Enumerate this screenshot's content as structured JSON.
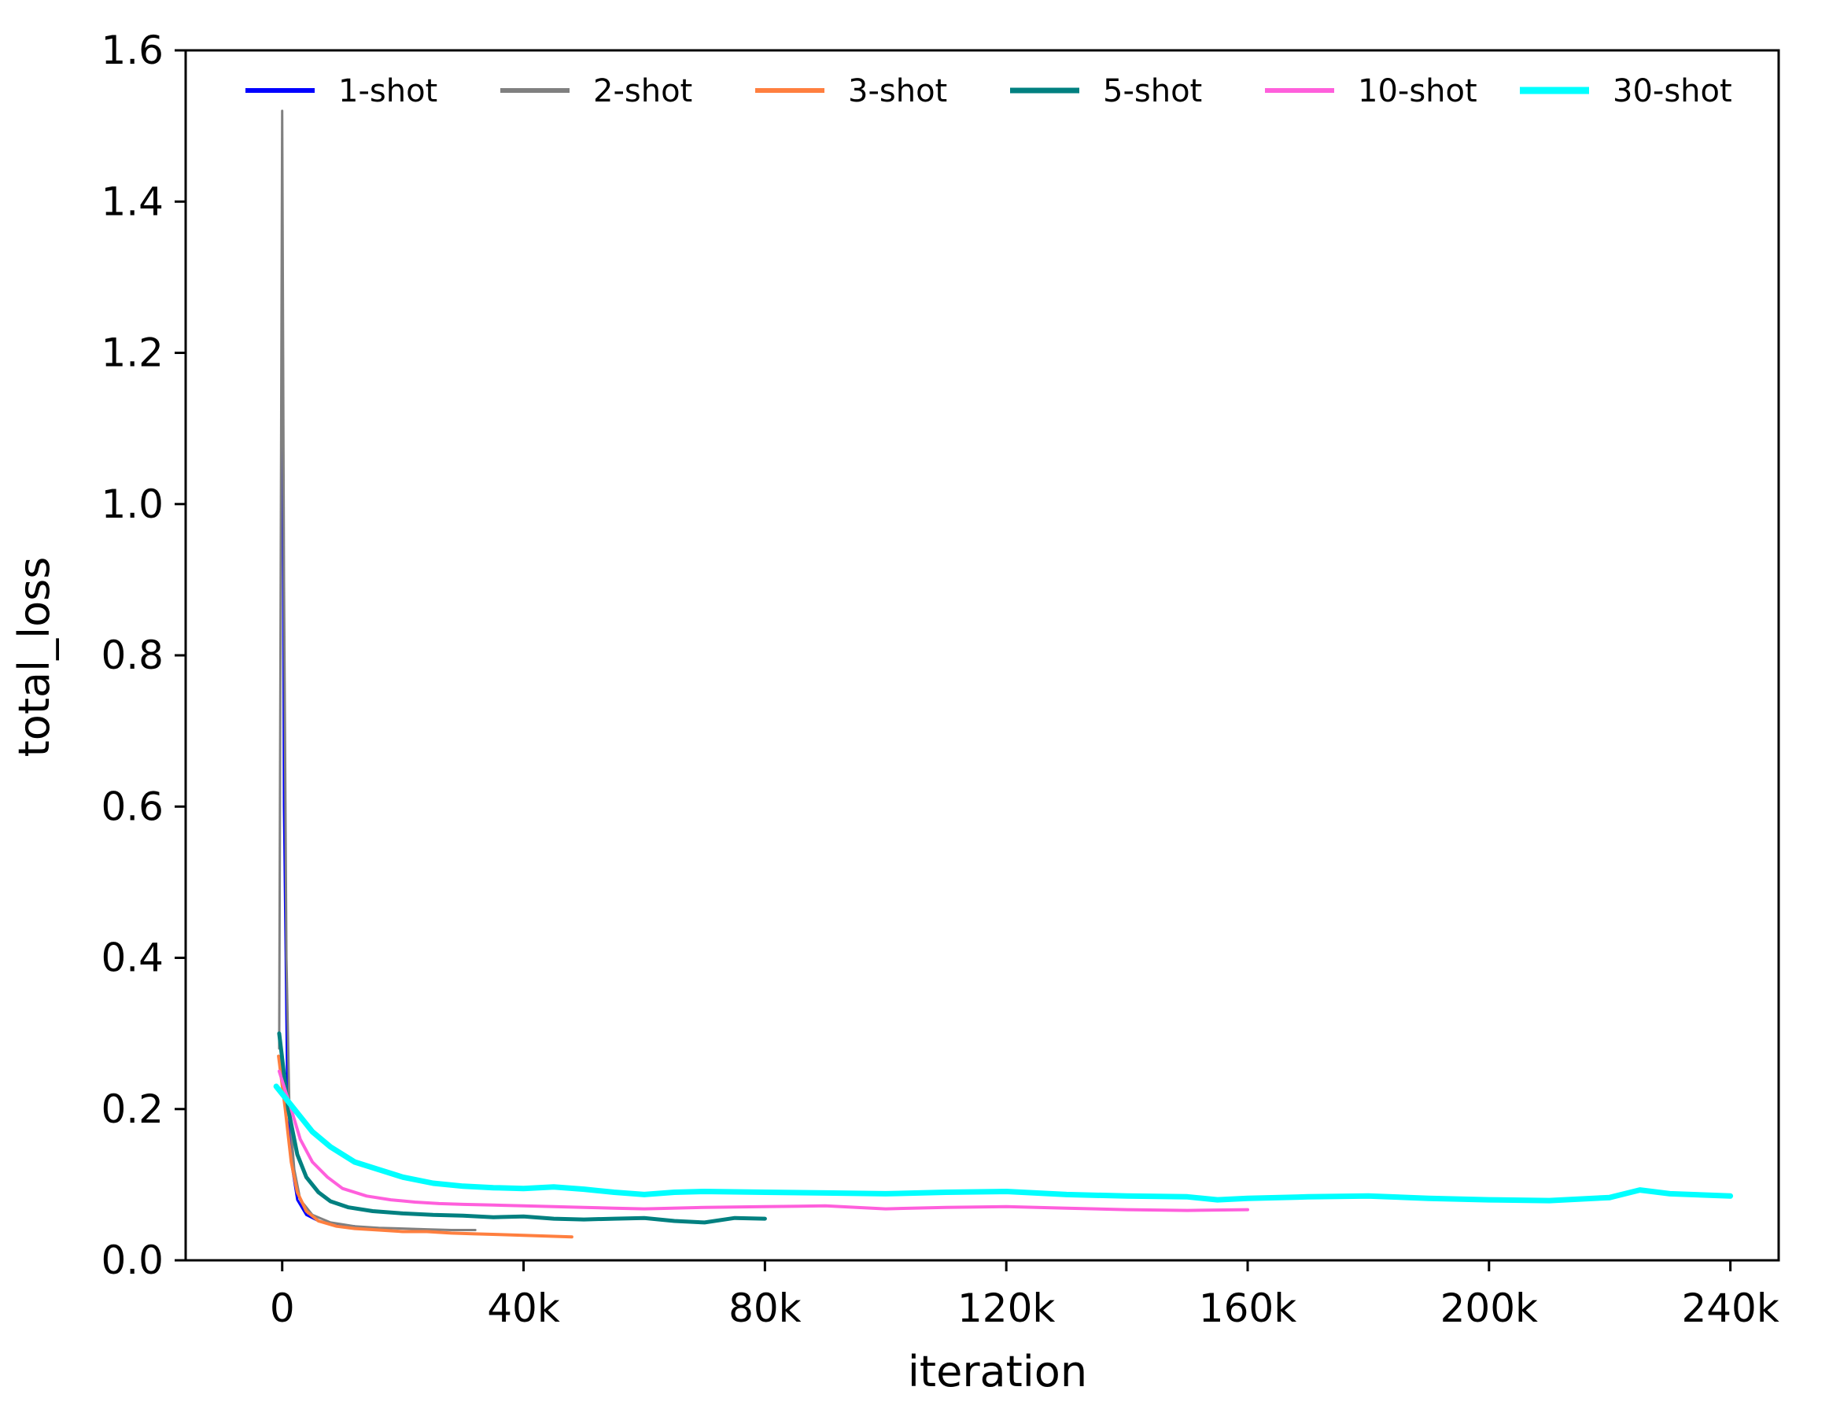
{
  "chart_data": {
    "type": "line",
    "title": "",
    "xlabel": "iteration",
    "ylabel": "total_loss",
    "xlim": [
      -16000,
      248000
    ],
    "ylim": [
      0.0,
      1.6
    ],
    "x_ticks": [
      {
        "value": 0,
        "label": "0"
      },
      {
        "value": 40000,
        "label": "40k"
      },
      {
        "value": 80000,
        "label": "80k"
      },
      {
        "value": 120000,
        "label": "120k"
      },
      {
        "value": 160000,
        "label": "160k"
      },
      {
        "value": 200000,
        "label": "200k"
      },
      {
        "value": 240000,
        "label": "240k"
      }
    ],
    "y_ticks": [
      {
        "value": 0.0,
        "label": "0.0"
      },
      {
        "value": 0.2,
        "label": "0.2"
      },
      {
        "value": 0.4,
        "label": "0.4"
      },
      {
        "value": 0.6,
        "label": "0.6"
      },
      {
        "value": 0.8,
        "label": "0.8"
      },
      {
        "value": 1.0,
        "label": "1.0"
      },
      {
        "value": 1.2,
        "label": "1.2"
      },
      {
        "value": 1.4,
        "label": "1.4"
      },
      {
        "value": 1.6,
        "label": "1.6"
      }
    ],
    "grid": false,
    "legend": {
      "placement": "top",
      "columns": 6
    },
    "series": [
      {
        "name": "1-shot",
        "color": "#0000ff",
        "width": 3,
        "x": [
          0,
          300,
          800,
          1500,
          2500,
          4000,
          6000,
          8000,
          10000,
          12000
        ],
        "y": [
          1.35,
          0.6,
          0.25,
          0.13,
          0.08,
          0.06,
          0.052,
          0.048,
          0.046,
          0.045
        ]
      },
      {
        "name": "2-shot",
        "color": "#808080",
        "width": 3,
        "x": [
          -500,
          0,
          300,
          700,
          1200,
          2000,
          3000,
          5000,
          8000,
          12000,
          16000,
          20000,
          24000,
          28000,
          32000
        ],
        "y": [
          0.28,
          1.52,
          0.9,
          0.4,
          0.2,
          0.12,
          0.08,
          0.06,
          0.05,
          0.045,
          0.043,
          0.042,
          0.041,
          0.04,
          0.04
        ]
      },
      {
        "name": "3-shot",
        "color": "#ff7f3f",
        "width": 4,
        "x": [
          -600,
          500,
          1500,
          2500,
          4000,
          6000,
          9000,
          12000,
          16000,
          20000,
          24000,
          28000,
          32000,
          36000,
          40000,
          44000,
          48000
        ],
        "y": [
          0.27,
          0.2,
          0.13,
          0.09,
          0.065,
          0.052,
          0.045,
          0.042,
          0.04,
          0.038,
          0.038,
          0.036,
          0.035,
          0.034,
          0.033,
          0.032,
          0.031
        ]
      },
      {
        "name": "5-shot",
        "color": "#008080",
        "width": 5,
        "x": [
          -500,
          1000,
          2500,
          4000,
          6000,
          8000,
          11000,
          15000,
          20000,
          25000,
          30000,
          35000,
          40000,
          45000,
          50000,
          55000,
          60000,
          65000,
          70000,
          75000,
          80000
        ],
        "y": [
          0.3,
          0.2,
          0.14,
          0.11,
          0.09,
          0.078,
          0.07,
          0.065,
          0.062,
          0.06,
          0.059,
          0.057,
          0.058,
          0.055,
          0.054,
          0.055,
          0.056,
          0.052,
          0.05,
          0.056,
          0.055
        ]
      },
      {
        "name": "10-shot",
        "color": "#ff5fdc",
        "width": 4,
        "x": [
          -500,
          1500,
          3000,
          5000,
          7500,
          10000,
          14000,
          18000,
          22000,
          26000,
          30000,
          35000,
          40000,
          45000,
          50000,
          55000,
          60000,
          70000,
          80000,
          90000,
          100000,
          110000,
          120000,
          130000,
          140000,
          150000,
          160000
        ],
        "y": [
          0.25,
          0.2,
          0.16,
          0.13,
          0.11,
          0.095,
          0.085,
          0.08,
          0.077,
          0.075,
          0.074,
          0.073,
          0.072,
          0.071,
          0.07,
          0.069,
          0.068,
          0.07,
          0.071,
          0.072,
          0.068,
          0.07,
          0.071,
          0.069,
          0.067,
          0.066,
          0.067
        ]
      },
      {
        "name": "30-shot",
        "color": "#00ffff",
        "width": 7,
        "x": [
          -1000,
          2000,
          5000,
          8000,
          12000,
          16000,
          20000,
          25000,
          30000,
          35000,
          40000,
          45000,
          50000,
          55000,
          60000,
          65000,
          70000,
          80000,
          90000,
          100000,
          110000,
          120000,
          130000,
          140000,
          150000,
          155000,
          160000,
          170000,
          180000,
          190000,
          200000,
          210000,
          220000,
          225000,
          230000,
          240000
        ],
        "y": [
          0.23,
          0.2,
          0.17,
          0.15,
          0.13,
          0.12,
          0.11,
          0.102,
          0.098,
          0.096,
          0.095,
          0.097,
          0.094,
          0.09,
          0.087,
          0.09,
          0.091,
          0.09,
          0.089,
          0.088,
          0.09,
          0.091,
          0.087,
          0.085,
          0.084,
          0.08,
          0.082,
          0.084,
          0.085,
          0.082,
          0.08,
          0.079,
          0.083,
          0.093,
          0.088,
          0.085
        ]
      }
    ]
  }
}
